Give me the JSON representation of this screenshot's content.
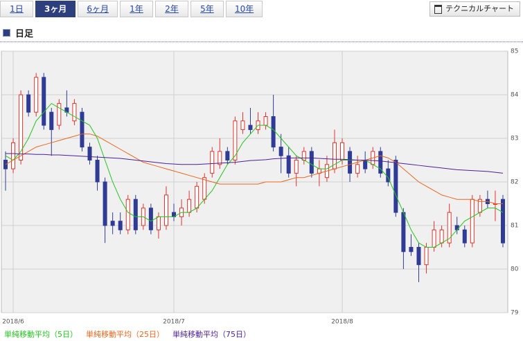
{
  "tabs": [
    "1日",
    "3ヶ月",
    "6ヶ月",
    "1年",
    "2年",
    "5年",
    "10年"
  ],
  "active_tab": 1,
  "button": "テクニカルチャート",
  "section_title": "日足",
  "chart_data": {
    "type": "candlestick",
    "up_color": "#e0322b",
    "down_color": "#2f3b94",
    "candles": [
      [
        82.5,
        82.7,
        81.8,
        82.3
      ],
      [
        82.3,
        83.0,
        82.2,
        82.9
      ],
      [
        82.5,
        84.1,
        82.4,
        84.0
      ],
      [
        84.0,
        84.1,
        83.5,
        83.6
      ],
      [
        83.6,
        84.5,
        83.5,
        84.4
      ],
      [
        84.4,
        84.5,
        83.2,
        83.3
      ],
      [
        83.6,
        83.7,
        82.6,
        83.2
      ],
      [
        83.3,
        83.9,
        83.2,
        83.8
      ],
      [
        83.7,
        84.1,
        83.5,
        83.6
      ],
      [
        83.4,
        83.9,
        83.3,
        83.8
      ],
      [
        83.6,
        83.7,
        82.7,
        82.8
      ],
      [
        82.8,
        82.9,
        82.4,
        82.5
      ],
      [
        82.5,
        82.6,
        81.8,
        82.0
      ],
      [
        82.0,
        82.1,
        80.6,
        81.0
      ],
      [
        81.1,
        81.3,
        80.8,
        81.0
      ],
      [
        81.1,
        81.3,
        80.8,
        80.9
      ],
      [
        80.9,
        81.7,
        80.8,
        81.6
      ],
      [
        81.6,
        81.7,
        80.8,
        80.9
      ],
      [
        81.0,
        81.5,
        80.9,
        81.4
      ],
      [
        81.4,
        81.5,
        80.8,
        80.9
      ],
      [
        80.9,
        81.3,
        80.7,
        81.2
      ],
      [
        81.0,
        81.9,
        80.9,
        81.7
      ],
      [
        81.3,
        81.5,
        81.1,
        81.2
      ],
      [
        81.2,
        81.6,
        81.0,
        81.4
      ],
      [
        81.3,
        81.8,
        81.2,
        81.6
      ],
      [
        81.4,
        82.0,
        81.3,
        81.9
      ],
      [
        81.6,
        82.2,
        81.5,
        82.1
      ],
      [
        82.2,
        82.8,
        82.1,
        82.7
      ],
      [
        82.4,
        83.0,
        82.3,
        82.7
      ],
      [
        82.7,
        82.8,
        82.4,
        82.5
      ],
      [
        82.5,
        83.5,
        82.4,
        83.4
      ],
      [
        83.2,
        83.6,
        83.1,
        83.4
      ],
      [
        83.3,
        83.7,
        83.1,
        83.2
      ],
      [
        83.2,
        83.6,
        83.1,
        83.4
      ],
      [
        83.3,
        83.6,
        83.2,
        83.5
      ],
      [
        83.5,
        84.0,
        82.7,
        82.8
      ],
      [
        82.8,
        83.1,
        82.2,
        82.6
      ],
      [
        82.6,
        82.8,
        82.1,
        82.2
      ],
      [
        82.2,
        82.6,
        81.9,
        82.5
      ],
      [
        82.5,
        82.8,
        82.4,
        82.7
      ],
      [
        82.7,
        82.8,
        82.1,
        82.2
      ],
      [
        82.2,
        82.5,
        81.9,
        82.3
      ],
      [
        82.1,
        82.6,
        82.0,
        82.4
      ],
      [
        82.3,
        83.2,
        82.2,
        82.9
      ],
      [
        82.5,
        83.0,
        82.4,
        82.9
      ],
      [
        82.7,
        82.8,
        82.0,
        82.2
      ],
      [
        82.2,
        82.6,
        82.1,
        82.4
      ],
      [
        82.5,
        82.7,
        82.2,
        82.3
      ],
      [
        82.4,
        82.8,
        82.3,
        82.7
      ],
      [
        82.7,
        82.8,
        82.1,
        82.2
      ],
      [
        82.3,
        82.5,
        81.9,
        82.0
      ],
      [
        82.5,
        82.6,
        81.2,
        81.3
      ],
      [
        81.3,
        81.4,
        80.0,
        80.4
      ],
      [
        80.5,
        80.8,
        80.3,
        80.4
      ],
      [
        80.5,
        80.6,
        79.7,
        80.1
      ],
      [
        80.1,
        80.6,
        79.9,
        80.5
      ],
      [
        80.5,
        81.1,
        80.4,
        80.9
      ],
      [
        80.6,
        81.0,
        80.5,
        80.9
      ],
      [
        80.6,
        81.5,
        80.5,
        81.3
      ],
      [
        81.0,
        81.2,
        80.8,
        80.9
      ],
      [
        80.9,
        81.0,
        80.5,
        80.6
      ],
      [
        80.6,
        81.7,
        80.5,
        81.6
      ],
      [
        81.3,
        81.7,
        81.2,
        81.6
      ],
      [
        81.6,
        81.8,
        81.4,
        81.5
      ],
      [
        81.5,
        81.8,
        81.1,
        81.5
      ],
      [
        81.6,
        81.7,
        80.5,
        80.6
      ]
    ],
    "series": [
      {
        "name": "単純移動平均（5日）",
        "color": "#22c41c",
        "values": [
          82.6,
          82.5,
          82.7,
          83.0,
          83.4,
          83.6,
          83.8,
          83.7,
          83.6,
          83.5,
          83.4,
          83.3,
          83.0,
          82.5,
          82.0,
          81.6,
          81.3,
          81.2,
          81.2,
          81.1,
          81.2,
          81.2,
          81.2,
          81.3,
          81.3,
          81.4,
          81.6,
          81.8,
          82.1,
          82.4,
          82.6,
          82.9,
          83.1,
          83.3,
          83.3,
          83.2,
          83.0,
          82.8,
          82.6,
          82.5,
          82.4,
          82.3,
          82.3,
          82.4,
          82.5,
          82.5,
          82.5,
          82.5,
          82.4,
          82.3,
          82.1,
          81.7,
          81.3,
          80.9,
          80.6,
          80.5,
          80.5,
          80.6,
          80.7,
          80.9,
          81.1,
          81.2,
          81.3,
          81.4,
          81.4,
          81.3
        ]
      },
      {
        "name": "単純移動平均（25日）",
        "color": "#e8671c",
        "values": [
          82.4,
          82.5,
          82.6,
          82.7,
          82.8,
          82.85,
          82.9,
          82.95,
          83.0,
          83.05,
          83.1,
          83.1,
          83.05,
          82.95,
          82.85,
          82.75,
          82.65,
          82.55,
          82.45,
          82.4,
          82.35,
          82.3,
          82.25,
          82.2,
          82.15,
          82.1,
          82.05,
          82.0,
          81.95,
          81.95,
          81.95,
          81.95,
          81.95,
          81.95,
          82.0,
          82.0,
          82.0,
          82.05,
          82.1,
          82.1,
          82.15,
          82.2,
          82.25,
          82.3,
          82.35,
          82.4,
          82.45,
          82.5,
          82.55,
          82.6,
          82.55,
          82.45,
          82.3,
          82.15,
          82.0,
          81.9,
          81.8,
          81.7,
          81.65,
          81.6,
          81.6,
          81.6,
          81.55,
          81.55,
          81.5,
          81.5
        ]
      },
      {
        "name": "単純移動平均（75日）",
        "color": "#4b1f96",
        "values": [
          82.65,
          82.65,
          82.64,
          82.64,
          82.63,
          82.63,
          82.62,
          82.62,
          82.61,
          82.6,
          82.59,
          82.58,
          82.57,
          82.56,
          82.55,
          82.54,
          82.52,
          82.5,
          82.48,
          82.46,
          82.44,
          82.42,
          82.41,
          82.4,
          82.4,
          82.4,
          82.41,
          82.42,
          82.43,
          82.44,
          82.45,
          82.47,
          82.49,
          82.5,
          82.51,
          82.53,
          82.54,
          82.55,
          82.55,
          82.55,
          82.55,
          82.54,
          82.53,
          82.52,
          82.52,
          82.51,
          82.5,
          82.5,
          82.49,
          82.48,
          82.46,
          82.44,
          82.42,
          82.4,
          82.38,
          82.36,
          82.34,
          82.32,
          82.3,
          82.28,
          82.27,
          82.26,
          82.25,
          82.24,
          82.22,
          82.2
        ]
      }
    ],
    "ylim": [
      79,
      85
    ],
    "yticks": [
      79,
      80,
      81,
      82,
      83,
      84,
      85
    ],
    "xticks": [
      {
        "value": 1,
        "label": "2018/6"
      },
      {
        "value": 22,
        "label": "2018/7"
      },
      {
        "value": 44,
        "label": "2018/8"
      }
    ],
    "grid": true
  }
}
